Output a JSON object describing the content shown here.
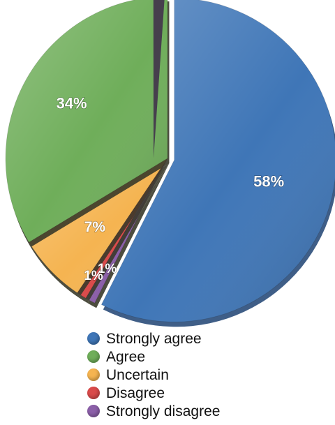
{
  "chart_data": {
    "type": "pie",
    "title": "",
    "exploded": true,
    "legend_position": "bottom",
    "slices": [
      {
        "name": "Strongly agree",
        "label": "58%",
        "value": 58,
        "color": "#3f76b7"
      },
      {
        "name": "Strongly disagree",
        "label": "1%",
        "value": 1,
        "color": "#8b5fa8"
      },
      {
        "name": "Disagree",
        "label": "1%",
        "value": 1,
        "color": "#d94a4a"
      },
      {
        "name": "Uncertain",
        "label": "7%",
        "value": 7,
        "color": "#f5b451"
      },
      {
        "name": "Agree",
        "label": "34%",
        "value": 34,
        "color": "#6fae5a"
      }
    ],
    "dark_wedge_color": "#3e2b4a",
    "legend": [
      {
        "label": "Strongly agree",
        "color": "#3f76b7"
      },
      {
        "label": "Agree",
        "color": "#6fae5a"
      },
      {
        "label": "Uncertain",
        "color": "#f5b451"
      },
      {
        "label": "Disagree",
        "color": "#d94a4a"
      },
      {
        "label": "Strongly disagree",
        "color": "#8b5fa8"
      }
    ]
  }
}
